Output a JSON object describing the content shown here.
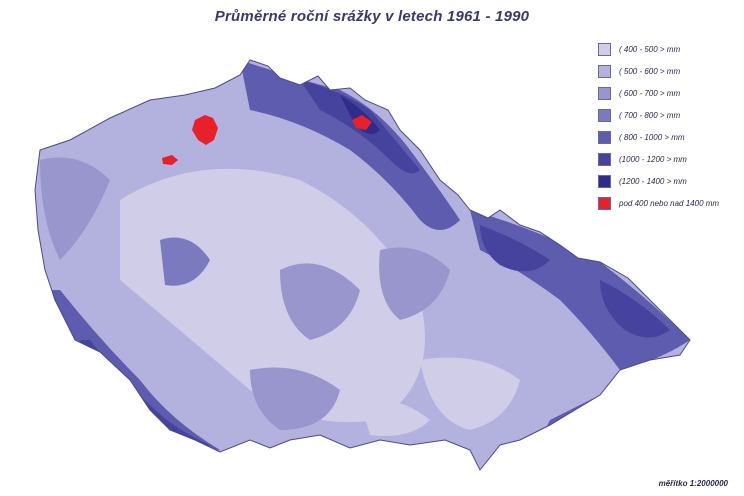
{
  "title": "Průměrné roční srážky v letech 1961 - 1990",
  "legend": [
    {
      "label": "( 400 - 500 > mm",
      "color": "#cfcde8"
    },
    {
      "label": "( 500 - 600 > mm",
      "color": "#b3b1dd"
    },
    {
      "label": "( 600 - 700 > mm",
      "color": "#9896cc"
    },
    {
      "label": "( 700 - 800 > mm",
      "color": "#7c7abf"
    },
    {
      "label": "( 800 - 1000 > mm",
      "color": "#5e5cae"
    },
    {
      "label": "(1000 - 1200 > mm",
      "color": "#45439e"
    },
    {
      "label": "(1200 - 1400 > mm",
      "color": "#2f2d8c"
    },
    {
      "label": "pod 400 nebo nad 1400 mm",
      "color": "#e8202a"
    }
  ],
  "scale": "měřítko 1:2000000"
}
